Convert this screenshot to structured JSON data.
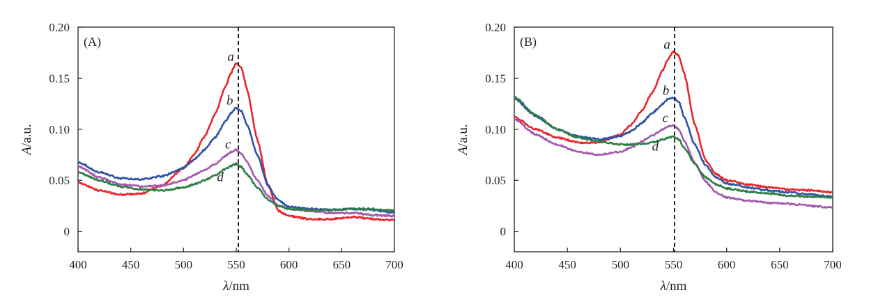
{
  "chart_data": [
    {
      "type": "line",
      "panel_label": "(A)",
      "xlabel": {
        "var": "λ",
        "unit": "/nm"
      },
      "ylabel": {
        "var": "A",
        "unit": "/a.u."
      },
      "xlim": [
        400,
        700
      ],
      "ylim": [
        -0.02,
        0.2
      ],
      "x_ticks": [
        400,
        450,
        500,
        550,
        600,
        650,
        700
      ],
      "x_tick_labels": [
        "400",
        "450",
        "500",
        "550",
        "600",
        "650",
        "700"
      ],
      "y_ticks": [
        0,
        0.05,
        0.1,
        0.15,
        0.2
      ],
      "y_tick_labels": [
        "0",
        "0.05",
        "0.10",
        "0.15",
        "0.20"
      ],
      "reference_line_x": 552,
      "series": [
        {
          "name": "a",
          "color": "#e8262b",
          "label_at": [
            548,
            0.167
          ],
          "x": [
            400,
            420,
            440,
            460,
            480,
            500,
            510,
            520,
            530,
            540,
            545,
            550,
            555,
            560,
            570,
            580,
            590,
            600,
            620,
            640,
            660,
            680,
            700
          ],
          "y": [
            0.048,
            0.04,
            0.036,
            0.037,
            0.045,
            0.062,
            0.075,
            0.093,
            0.115,
            0.142,
            0.155,
            0.165,
            0.16,
            0.14,
            0.09,
            0.045,
            0.02,
            0.015,
            0.012,
            0.012,
            0.014,
            0.012,
            0.011
          ]
        },
        {
          "name": "b",
          "color": "#2d52a4",
          "label_at": [
            547,
            0.124
          ],
          "x": [
            400,
            420,
            440,
            460,
            480,
            500,
            510,
            520,
            530,
            540,
            545,
            550,
            555,
            560,
            570,
            580,
            590,
            600,
            620,
            640,
            660,
            680,
            700
          ],
          "y": [
            0.068,
            0.058,
            0.052,
            0.051,
            0.054,
            0.062,
            0.07,
            0.08,
            0.092,
            0.108,
            0.116,
            0.121,
            0.118,
            0.105,
            0.075,
            0.045,
            0.03,
            0.024,
            0.022,
            0.021,
            0.022,
            0.021,
            0.018
          ]
        },
        {
          "name": "c",
          "color": "#a358ae",
          "label_at": [
            545,
            0.081
          ],
          "x": [
            400,
            420,
            440,
            460,
            480,
            500,
            510,
            520,
            530,
            540,
            545,
            550,
            555,
            560,
            570,
            580,
            590,
            600,
            620,
            640,
            660,
            680,
            700
          ],
          "y": [
            0.064,
            0.053,
            0.046,
            0.044,
            0.045,
            0.05,
            0.055,
            0.06,
            0.066,
            0.074,
            0.078,
            0.08,
            0.076,
            0.068,
            0.05,
            0.035,
            0.025,
            0.022,
            0.02,
            0.018,
            0.018,
            0.016,
            0.015
          ]
        },
        {
          "name": "d",
          "color": "#2e7d46",
          "label_at": [
            538,
            0.049
          ],
          "x": [
            400,
            420,
            440,
            460,
            480,
            500,
            510,
            520,
            530,
            540,
            545,
            550,
            555,
            560,
            570,
            580,
            590,
            600,
            620,
            640,
            660,
            680,
            700
          ],
          "y": [
            0.058,
            0.05,
            0.044,
            0.041,
            0.04,
            0.043,
            0.046,
            0.05,
            0.055,
            0.061,
            0.064,
            0.066,
            0.063,
            0.056,
            0.043,
            0.031,
            0.025,
            0.022,
            0.021,
            0.021,
            0.022,
            0.022,
            0.02
          ]
        }
      ]
    },
    {
      "type": "line",
      "panel_label": "(B)",
      "xlabel": {
        "var": "λ",
        "unit": "/nm"
      },
      "ylabel": {
        "var": "A",
        "unit": "/a.u."
      },
      "xlim": [
        400,
        700
      ],
      "ylim": [
        -0.02,
        0.2
      ],
      "x_ticks": [
        400,
        450,
        500,
        550,
        600,
        650,
        700
      ],
      "x_tick_labels": [
        "400",
        "450",
        "500",
        "550",
        "600",
        "650",
        "700"
      ],
      "y_ticks": [
        0,
        0.05,
        0.1,
        0.15,
        0.2
      ],
      "y_tick_labels": [
        "0",
        "0.05",
        "0.10",
        "0.15",
        "0.20"
      ],
      "reference_line_x": 551,
      "series": [
        {
          "name": "a",
          "color": "#e8262b",
          "label_at": [
            547,
            0.179
          ],
          "x": [
            400,
            420,
            440,
            460,
            480,
            500,
            510,
            520,
            530,
            540,
            545,
            550,
            555,
            560,
            570,
            580,
            590,
            600,
            620,
            640,
            660,
            680,
            700
          ],
          "y": [
            0.112,
            0.1,
            0.092,
            0.087,
            0.087,
            0.095,
            0.104,
            0.118,
            0.136,
            0.158,
            0.169,
            0.176,
            0.172,
            0.155,
            0.105,
            0.07,
            0.056,
            0.05,
            0.046,
            0.043,
            0.041,
            0.04,
            0.038
          ]
        },
        {
          "name": "b",
          "color": "#2d52a4",
          "label_at": [
            546,
            0.134
          ],
          "x": [
            400,
            420,
            440,
            460,
            480,
            500,
            510,
            520,
            530,
            540,
            545,
            550,
            555,
            560,
            570,
            580,
            590,
            600,
            620,
            640,
            660,
            680,
            700
          ],
          "y": [
            0.13,
            0.113,
            0.1,
            0.093,
            0.09,
            0.093,
            0.098,
            0.106,
            0.116,
            0.125,
            0.13,
            0.131,
            0.127,
            0.112,
            0.085,
            0.065,
            0.053,
            0.047,
            0.043,
            0.04,
            0.038,
            0.036,
            0.034
          ]
        },
        {
          "name": "c",
          "color": "#a358ae",
          "label_at": [
            545,
            0.107
          ],
          "x": [
            400,
            420,
            440,
            460,
            480,
            500,
            510,
            520,
            530,
            540,
            545,
            550,
            555,
            560,
            570,
            580,
            590,
            600,
            620,
            640,
            660,
            680,
            700
          ],
          "y": [
            0.11,
            0.095,
            0.085,
            0.078,
            0.075,
            0.078,
            0.082,
            0.088,
            0.094,
            0.1,
            0.103,
            0.104,
            0.1,
            0.089,
            0.067,
            0.049,
            0.038,
            0.033,
            0.03,
            0.028,
            0.027,
            0.025,
            0.023
          ]
        },
        {
          "name": "d",
          "color": "#2e7d46",
          "label_at": [
            536,
            0.079
          ],
          "x": [
            400,
            420,
            440,
            460,
            480,
            500,
            510,
            520,
            530,
            540,
            545,
            550,
            555,
            560,
            570,
            580,
            590,
            600,
            620,
            640,
            660,
            680,
            700
          ],
          "y": [
            0.132,
            0.114,
            0.1,
            0.092,
            0.088,
            0.085,
            0.085,
            0.086,
            0.087,
            0.09,
            0.092,
            0.093,
            0.09,
            0.082,
            0.066,
            0.053,
            0.046,
            0.042,
            0.039,
            0.037,
            0.035,
            0.034,
            0.033
          ]
        }
      ]
    }
  ]
}
